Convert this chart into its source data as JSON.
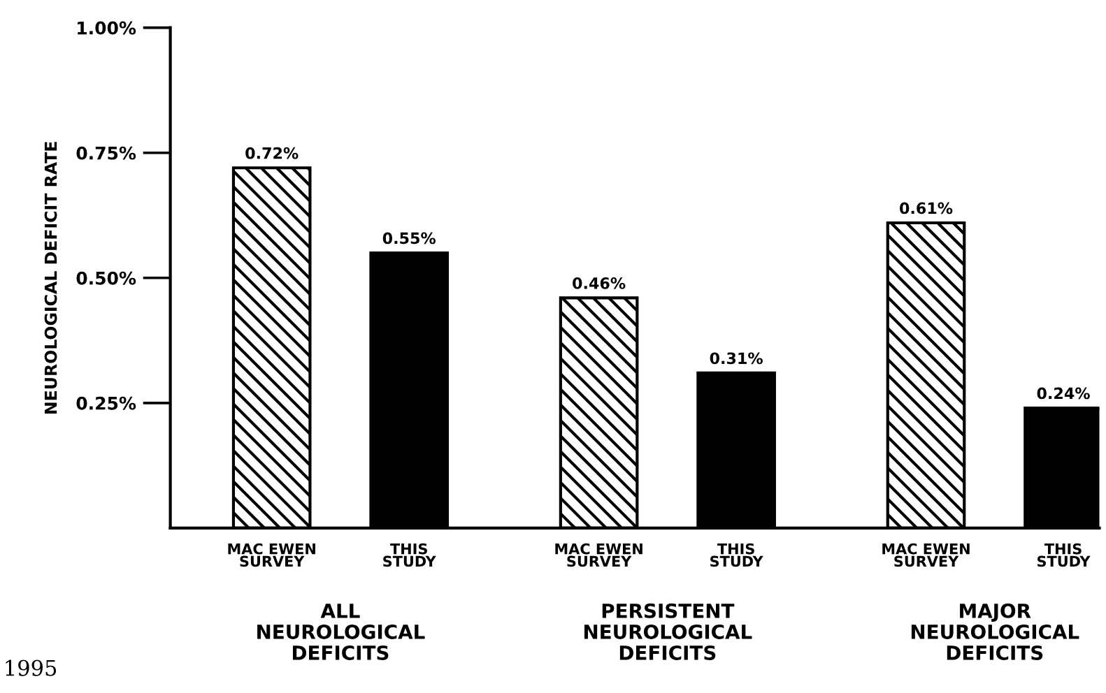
{
  "chart_data": {
    "type": "bar",
    "ylabel": "NEUROLOGICAL DEFICIT RATE",
    "categories": [
      "ALL\nNEUROLOGICAL\nDEFICITS",
      "PERSISTENT\nNEUROLOGICAL\nDEFICITS",
      "MAJOR\nNEUROLOGICAL\nDEFICITS"
    ],
    "series": [
      {
        "name": "MAC EWEN\nSURVEY",
        "color": "#000000",
        "values": [
          0.72,
          0.46,
          0.61
        ],
        "value_labels": [
          "0.72%",
          "0.46%",
          "0.61%"
        ]
      },
      {
        "name": "THIS\nSTUDY",
        "color": "#000000",
        "values": [
          0.55,
          0.31,
          0.24
        ],
        "value_labels": [
          "0.55%",
          "0.31%",
          "0.24%"
        ]
      }
    ],
    "ylim": [
      0,
      1.0
    ],
    "yticks": [
      {
        "value": 0.25,
        "label": "0.25%"
      },
      {
        "value": 0.5,
        "label": "0.50%"
      },
      {
        "value": 0.75,
        "label": "0.75%"
      },
      {
        "value": 1.0,
        "label": "1.00%"
      }
    ],
    "grid": false,
    "legend": false,
    "annotations": [
      "1995"
    ]
  }
}
